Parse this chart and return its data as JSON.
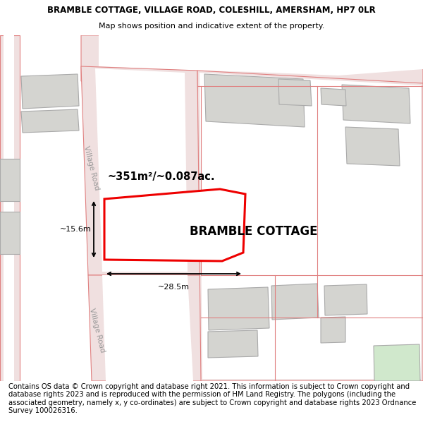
{
  "title": "BRAMBLE COTTAGE, VILLAGE ROAD, COLESHILL, AMERSHAM, HP7 0LR",
  "subtitle": "Map shows position and indicative extent of the property.",
  "footer": "Contains OS data © Crown copyright and database right 2021. This information is subject to Crown copyright and database rights 2023 and is reproduced with the permission of HM Land Registry. The polygons (including the associated geometry, namely x, y co-ordinates) are subject to Crown copyright and database rights 2023 Ordnance Survey 100026316.",
  "road_fill": "#f0e0e0",
  "road_edge": "#e08080",
  "building_fill": "#d4d4d0",
  "building_edge": "#aaaaaa",
  "green_fill": "#d0e8cc",
  "green_edge": "#aaaaaa",
  "highlight_edge": "#ee0000",
  "highlight_fill": "#ffffff",
  "dim_line_color": "#000000",
  "label_color": "#000000",
  "road_label_color": "#999999",
  "area_label": "~351m²/~0.087ac.",
  "property_label": "BRAMBLE COTTAGE",
  "dim_h": "~15.6m",
  "dim_w": "~28.5m",
  "road_label": "Village Road",
  "title_fontsize": 8.5,
  "subtitle_fontsize": 8,
  "footer_fontsize": 7.2,
  "map_bg": "#ffffff"
}
